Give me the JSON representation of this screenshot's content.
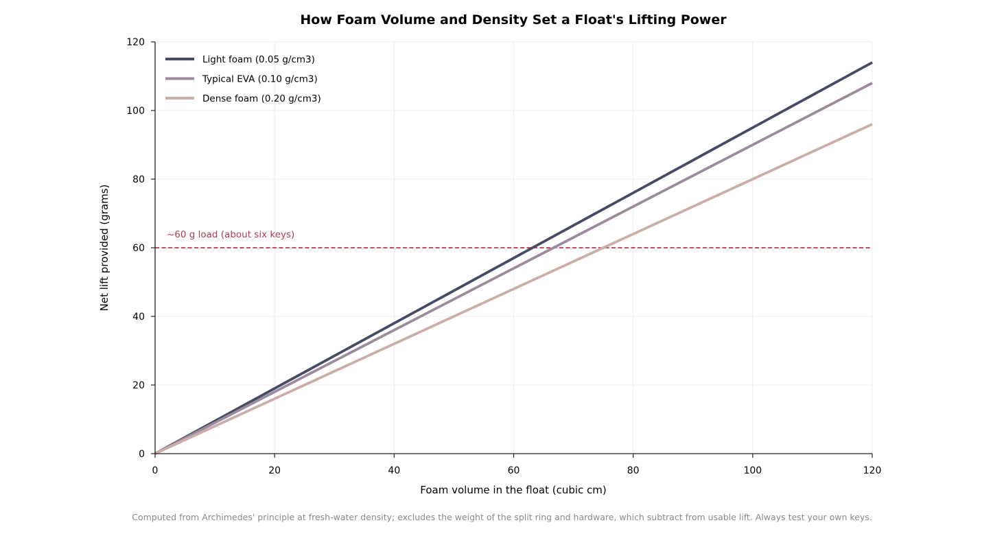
{
  "chart_data": {
    "type": "line",
    "title": "How Foam Volume and Density Set a Float's Lifting Power",
    "xlabel": "Foam volume in the float (cubic cm)",
    "ylabel": "Net lift provided (grams)",
    "xlim": [
      0,
      120
    ],
    "ylim": [
      0,
      120
    ],
    "xticks": [
      0,
      20,
      40,
      60,
      80,
      100,
      120
    ],
    "yticks": [
      0,
      20,
      40,
      60,
      80,
      100,
      120
    ],
    "grid": true,
    "legend_position": "top-left",
    "x": [
      0,
      120
    ],
    "series": [
      {
        "name": "Light foam (0.05 g/cm3)",
        "values": [
          0,
          114
        ],
        "color": "#474b66"
      },
      {
        "name": "Typical EVA (0.10 g/cm3)",
        "values": [
          0,
          108
        ],
        "color": "#9c8b9c"
      },
      {
        "name": "Dense foam (0.20 g/cm3)",
        "values": [
          0,
          96
        ],
        "color": "#cbaea7"
      }
    ],
    "reference_line": {
      "y": 60,
      "label": "~60 g load (about six keys)",
      "color": "#b03a4e",
      "style": "dashed"
    }
  },
  "footnote": "Computed from Archimedes' principle at fresh-water density; excludes the weight of the split ring and hardware, which subtract from usable lift. Always test your own keys."
}
